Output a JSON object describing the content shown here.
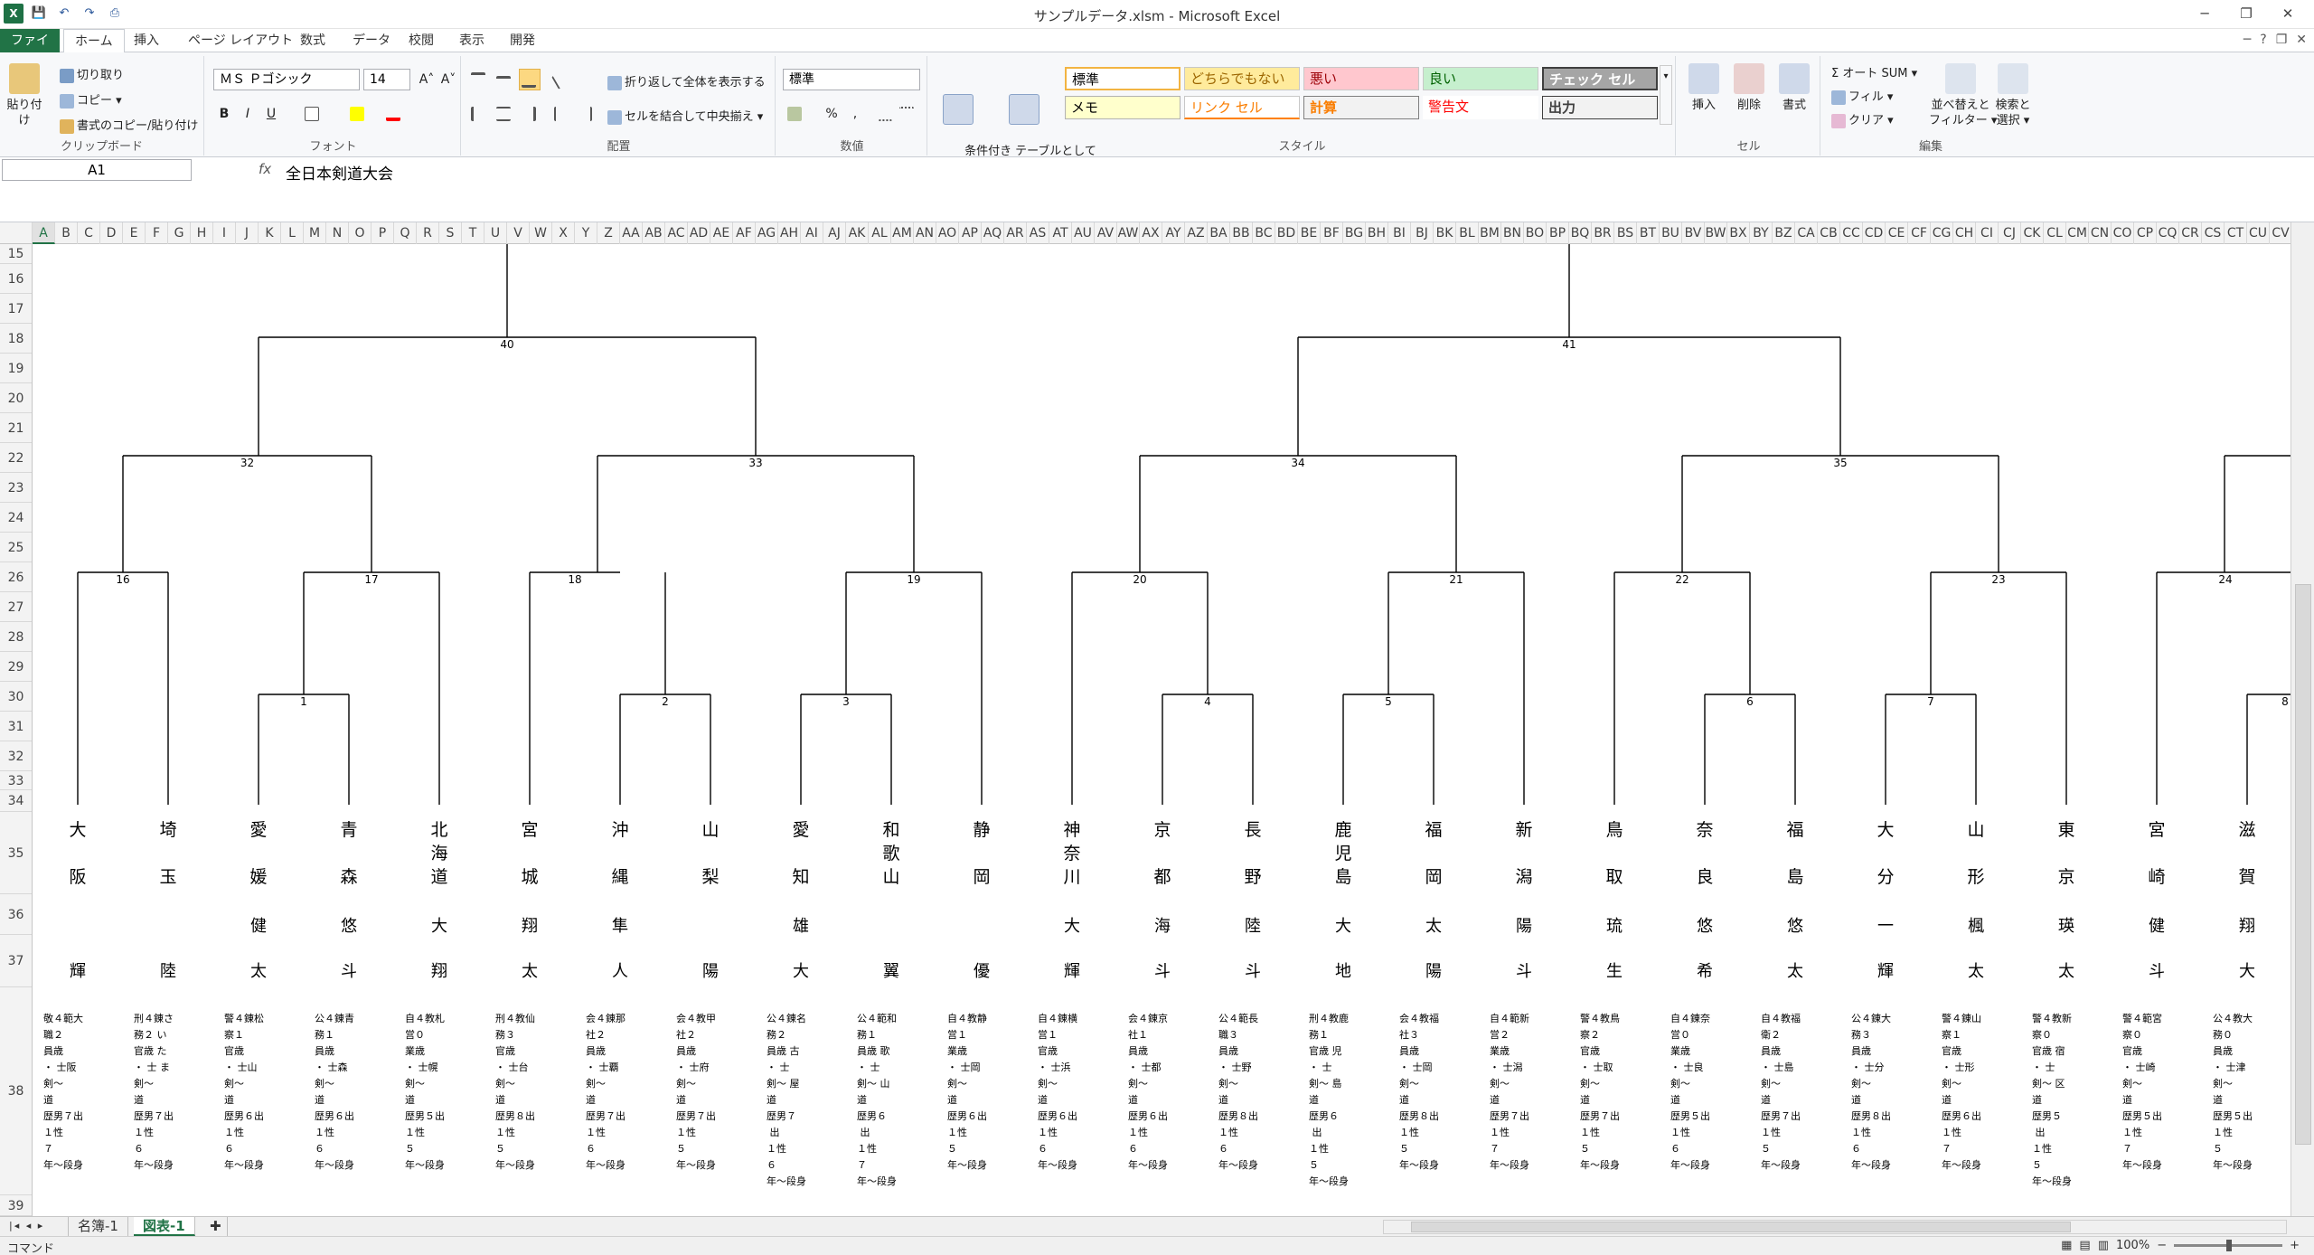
{
  "window": {
    "title": "サンプルデータ.xlsm - Microsoft Excel"
  },
  "qat": {
    "logo": "X",
    "save": "💾",
    "undo": "↶",
    "redo": "↷",
    "preview": "⎙"
  },
  "wincontrols": {
    "min": "─",
    "restore": "❐",
    "close": "✕",
    "help": "?",
    "rmin": "─",
    "rrestore": "❐",
    "rclose": "✕"
  },
  "tabs": [
    "ファイル",
    "ホーム",
    "挿入",
    "ページ レイアウト",
    "数式",
    "データ",
    "校閲",
    "表示",
    "開発"
  ],
  "ribbon": {
    "clipboard": {
      "paste": "貼り付け",
      "cut": "切り取り",
      "copy": "コピー ▾",
      "format_painter": "書式のコピー/貼り付け",
      "label": "クリップボード"
    },
    "font": {
      "name": "ＭＳ Ｐゴシック",
      "size": "14",
      "bold": "B",
      "italic": "I",
      "underline": "U",
      "grow": "A˄",
      "shrink": "A˅",
      "label": "フォント"
    },
    "alignment": {
      "wrap": "折り返して全体を表示する",
      "merge": "セルを結合して中央揃え ▾",
      "label": "配置"
    },
    "number": {
      "format": "標準",
      "percent": "%",
      "comma": ",",
      "label": "数値"
    },
    "styles": {
      "cond_format": "条件付き\n書式 ▾",
      "table_format": "テーブルとして\n書式設定 ▾",
      "cells": [
        "標準",
        "どちらでもない",
        "悪い",
        "良い",
        "チェック セル",
        "メモ",
        "リンク セル",
        "計算",
        "警告文",
        "出力"
      ],
      "label": "スタイル"
    },
    "cells": {
      "insert": "挿入",
      "delete": "削除",
      "format": "書式",
      "label": "セル"
    },
    "editing": {
      "autosum": "Σ オート SUM ▾",
      "fill": "フィル ▾",
      "clear": "クリア ▾",
      "sort": "並べ替えと\nフィルター ▾",
      "find": "検索と\n選択 ▾",
      "label": "編集"
    }
  },
  "formula_bar": {
    "name_box": "A1",
    "fx": "fx",
    "content": "全日本剣道大会"
  },
  "columns": [
    "A",
    "B",
    "C",
    "D",
    "E",
    "F",
    "G",
    "H",
    "I",
    "J",
    "K",
    "L",
    "M",
    "N",
    "O",
    "P",
    "Q",
    "R",
    "S",
    "T",
    "U",
    "V",
    "W",
    "X",
    "Y",
    "Z",
    "AA",
    "AB",
    "AC",
    "AD",
    "AE",
    "AF",
    "AG",
    "AH",
    "AI",
    "AJ",
    "AK",
    "AL",
    "AM",
    "AN",
    "AO",
    "AP",
    "AQ",
    "AR",
    "AS",
    "AT",
    "AU",
    "AV",
    "AW",
    "AX",
    "AY",
    "AZ",
    "BA",
    "BB",
    "BC",
    "BD",
    "BE",
    "BF",
    "BG",
    "BH",
    "BI",
    "BJ",
    "BK",
    "BL",
    "BM",
    "BN",
    "BO",
    "BP",
    "BQ",
    "BR",
    "BS",
    "BT",
    "BU",
    "BV",
    "BW",
    "BX",
    "BY",
    "BZ",
    "CA",
    "CB",
    "CC",
    "CD",
    "CE",
    "CF",
    "CG",
    "CH",
    "CI",
    "CJ",
    "CK",
    "CL",
    "CM",
    "CN",
    "CO",
    "CP",
    "CQ",
    "CR",
    "CS",
    "CT",
    "CU",
    "CV"
  ],
  "rows": [
    "15",
    "16",
    "17",
    "18",
    "19",
    "20",
    "21",
    "22",
    "23",
    "24",
    "25",
    "26",
    "27",
    "28",
    "29",
    "30",
    "31",
    "32",
    "33",
    "34",
    "35",
    "36",
    "37",
    "38",
    "39"
  ],
  "bracket": {
    "match_numbers": [
      "1",
      "2",
      "3",
      "4",
      "5",
      "6",
      "7",
      "8",
      "16",
      "17",
      "18",
      "19",
      "20",
      "21",
      "22",
      "23",
      "24",
      "32",
      "33",
      "34",
      "35",
      "40",
      "41"
    ]
  },
  "players": [
    {
      "pref": "大阪",
      "name": "輝",
      "meta": "敬４範大\n職２\n員歳\n・ 士阪\n剣〜\n道\n歴男７出\n１性\n７\n年〜段身"
    },
    {
      "pref": "埼玉",
      "name": "陸",
      "meta": "刑４錬さ\n務２ い\n官歳 た\n・ 士 ま\n剣〜\n道\n歴男７出\n１性\n６\n年〜段身"
    },
    {
      "pref": "愛媛",
      "name": "健太",
      "meta": "警４錬松\n察１\n官歳\n・ 士山\n剣〜\n道\n歴男６出\n１性\n６\n年〜段身"
    },
    {
      "pref": "青森",
      "name": "悠斗",
      "meta": "公４錬青\n務１\n員歳\n・ 士森\n剣〜\n道\n歴男６出\n１性\n６\n年〜段身"
    },
    {
      "pref": "北海道",
      "name": "大翔",
      "meta": "自４教札\n営０\n業歳\n・ 士幌\n剣〜\n道\n歴男５出\n１性\n５\n年〜段身"
    },
    {
      "pref": "宮城",
      "name": "翔太",
      "meta": "刑４教仙\n務３\n官歳\n・ 士台\n剣〜\n道\n歴男８出\n１性\n５\n年〜段身"
    },
    {
      "pref": "沖縄",
      "name": "隼人",
      "meta": "会４錬那\n社２\n員歳\n・ 士覇\n剣〜\n道\n歴男７出\n１性\n６\n年〜段身"
    },
    {
      "pref": "山梨",
      "name": "陽",
      "meta": "会４教甲\n社２\n員歳\n・ 士府\n剣〜\n道\n歴男７出\n１性\n５\n年〜段身"
    },
    {
      "pref": "愛知",
      "name": "雄大",
      "meta": "公４錬名\n務２\n員歳 古\n・ 士\n剣〜 屋\n道\n歴男７\n 出\n１性\n６\n年〜段身"
    },
    {
      "pref": "和歌山",
      "name": "翼",
      "meta": "公４範和\n務１\n員歳 歌\n・ 士\n剣〜 山\n道\n歴男６\n 出\n１性\n７\n年〜段身"
    },
    {
      "pref": "静岡",
      "name": "優",
      "meta": "自４教静\n営１\n業歳\n・ 士岡\n剣〜\n道\n歴男６出\n１性\n５\n年〜段身"
    },
    {
      "pref": "神奈川",
      "name": "大輝",
      "meta": "自４錬横\n営１\n官歳\n・ 士浜\n剣〜\n道\n歴男６出\n１性\n６\n年〜段身"
    },
    {
      "pref": "京都",
      "name": "海斗",
      "meta": "会４錬京\n社１\n員歳\n・ 士都\n剣〜\n道\n歴男６出\n１性\n６\n年〜段身"
    },
    {
      "pref": "長野",
      "name": "陸斗",
      "meta": "公４範長\n職３\n員歳\n・ 士野\n剣〜\n道\n歴男８出\n１性\n６\n年〜段身"
    },
    {
      "pref": "鹿児島",
      "name": "大地",
      "meta": "刑４教鹿\n務１\n官歳 児\n・ 士\n剣〜 島\n道\n歴男６\n 出\n１性\n５\n年〜段身"
    },
    {
      "pref": "福岡",
      "name": "太陽",
      "meta": "会４教福\n社３\n員歳\n・ 士岡\n剣〜\n道\n歴男８出\n１性\n５\n年〜段身"
    },
    {
      "pref": "新潟",
      "name": "陽斗",
      "meta": "自４範新\n営２\n業歳\n・ 士潟\n剣〜\n道\n歴男７出\n１性\n７\n年〜段身"
    },
    {
      "pref": "鳥取",
      "name": "琉生",
      "meta": "警４教鳥\n察２\n官歳\n・ 士取\n剣〜\n道\n歴男７出\n１性\n５\n年〜段身"
    },
    {
      "pref": "奈良",
      "name": "悠希",
      "meta": "自４錬奈\n営０\n業歳\n・ 士良\n剣〜\n道\n歴男５出\n１性\n６\n年〜段身"
    },
    {
      "pref": "福島",
      "name": "悠太",
      "meta": "自４教福\n衛２\n員歳\n・ 士島\n剣〜\n道\n歴男７出\n１性\n５\n年〜段身"
    },
    {
      "pref": "大分",
      "name": "一輝",
      "meta": "公４錬大\n務３\n員歳\n・ 士分\n剣〜\n道\n歴男８出\n１性\n６\n年〜段身"
    },
    {
      "pref": "山形",
      "name": "楓太",
      "meta": "警４錬山\n察１\n官歳\n・ 士形\n剣〜\n道\n歴男６出\n１性\n７\n年〜段身"
    },
    {
      "pref": "東京",
      "name": "瑛太",
      "meta": "警４教新\n察０\n官歳 宿\n・ 士\n剣〜 区\n道\n歴男５\n 出\n１性\n５\n年〜段身"
    },
    {
      "pref": "宮崎",
      "name": "健斗",
      "meta": "警４範宮\n察０\n官歳\n・ 士崎\n剣〜\n道\n歴男５出\n１性\n７\n年〜段身"
    },
    {
      "pref": "滋賀",
      "name": "翔大",
      "meta": "公４教大\n務０\n員歳\n・ 士津\n剣〜\n道\n歴男５出\n１性\n５\n年〜段身"
    }
  ],
  "sheet_tabs": [
    "名簿-1",
    "図表-1"
  ],
  "status": {
    "mode": "コマンド",
    "zoom": "100%",
    "zoom_out": "−",
    "zoom_in": "+"
  }
}
